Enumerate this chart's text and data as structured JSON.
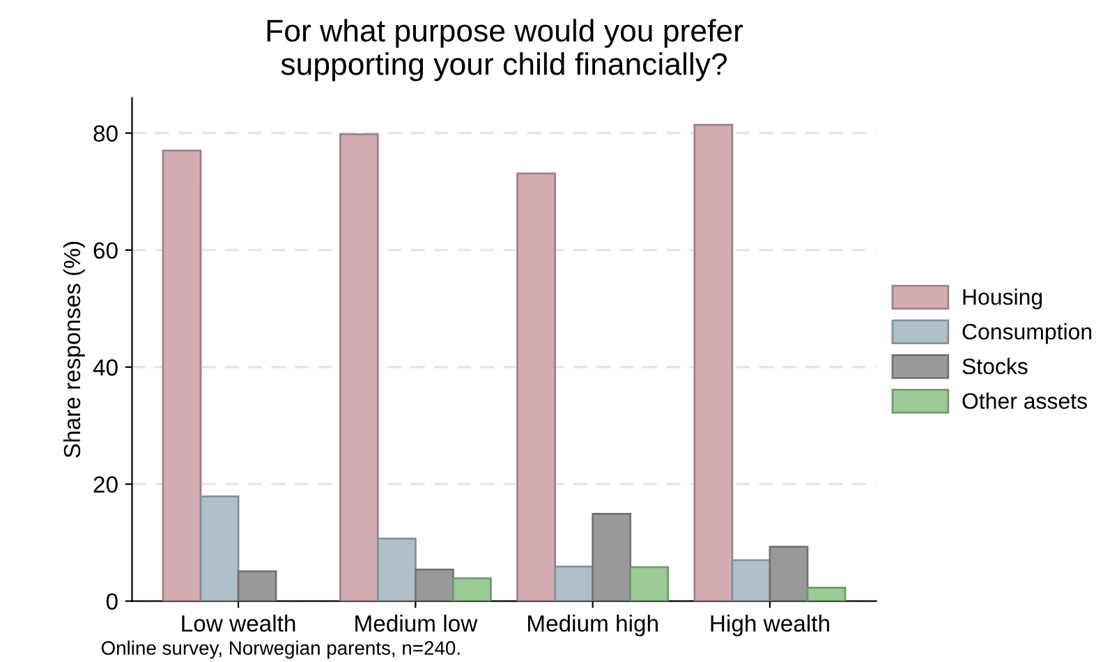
{
  "chart_data": {
    "type": "bar",
    "title": "For what purpose would you prefer\nsupporting your child financially?",
    "ylabel": "Share responses (%)",
    "categories": [
      "Low wealth",
      "Medium low",
      "Medium high",
      "High wealth"
    ],
    "series": [
      {
        "name": "Housing",
        "color": "#d4adb2",
        "values": [
          77.0,
          79.8,
          73.1,
          81.4
        ]
      },
      {
        "name": "Consumption",
        "color": "#b0c0cb",
        "values": [
          17.9,
          10.7,
          5.9,
          7.0
        ]
      },
      {
        "name": "Stocks",
        "color": "#999999",
        "values": [
          5.1,
          5.4,
          14.9,
          9.3
        ]
      },
      {
        "name": "Other assets",
        "color": "#9acb96",
        "values": [
          null,
          3.9,
          5.8,
          2.3
        ]
      }
    ],
    "ylim": [
      0,
      86
    ],
    "yticks": [
      0,
      20,
      40,
      60,
      80
    ],
    "grid": "y",
    "legend": "right",
    "annotations": [
      "Online survey, Norwegian parents, n=240."
    ]
  }
}
